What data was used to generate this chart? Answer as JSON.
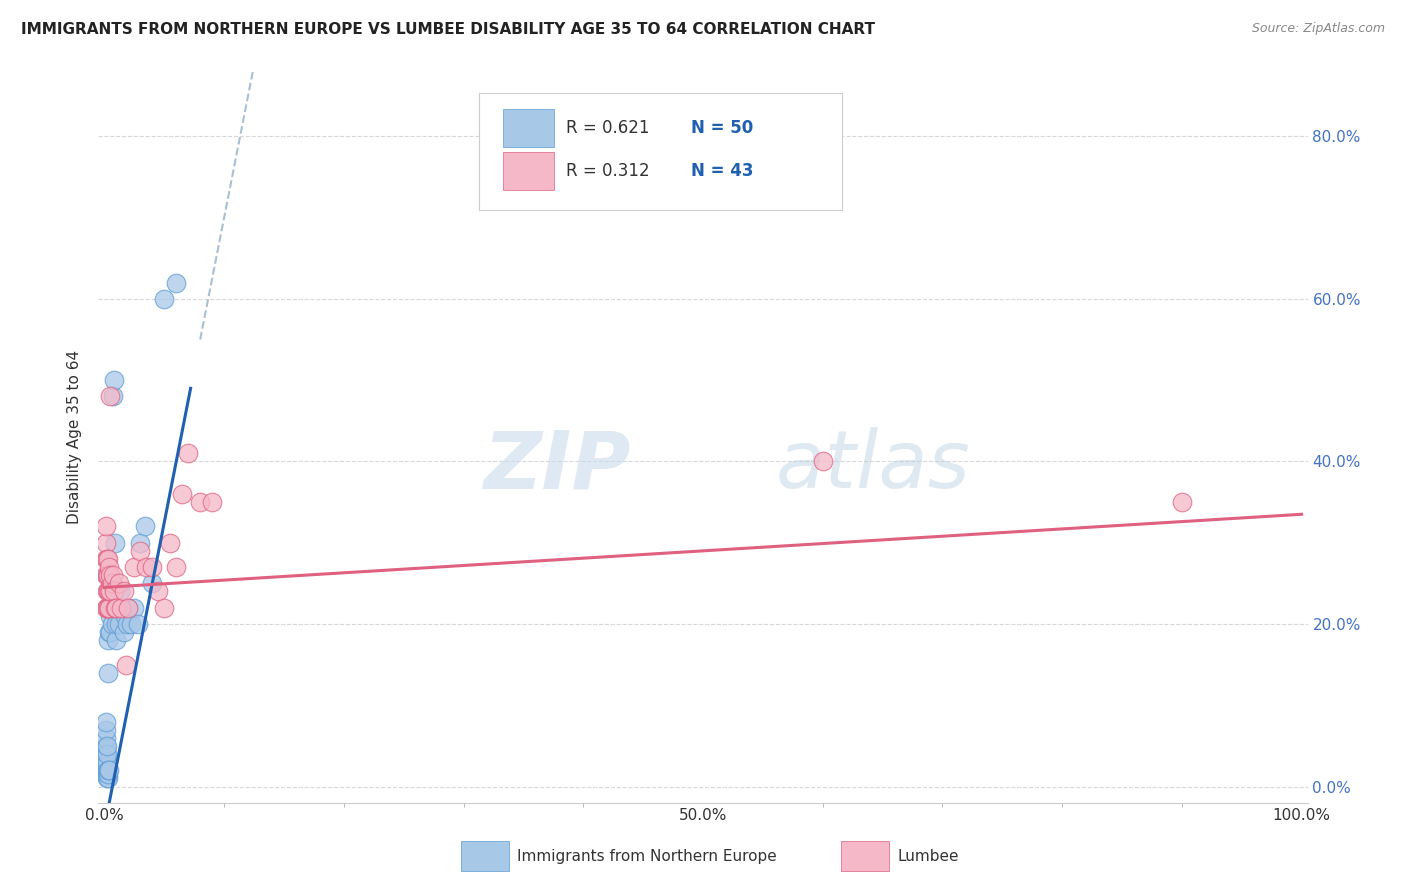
{
  "title": "IMMIGRANTS FROM NORTHERN EUROPE VS LUMBEE DISABILITY AGE 35 TO 64 CORRELATION CHART",
  "source": "Source: ZipAtlas.com",
  "ylabel": "Disability Age 35 to 64",
  "blue_R": 0.621,
  "blue_N": 50,
  "pink_R": 0.312,
  "pink_N": 43,
  "blue_color": "#a8c8e8",
  "pink_color": "#f4b8c8",
  "blue_edge": "#5b9bd5",
  "pink_edge": "#e06080",
  "trend_blue": "#2060b0",
  "trend_pink": "#e06080",
  "ref_line_color": "#a0b8d0",
  "watermark_color": "#c8d8ea",
  "blue_scatter": [
    [
      0.001,
      0.02
    ],
    [
      0.001,
      0.025
    ],
    [
      0.001,
      0.03
    ],
    [
      0.001,
      0.035
    ],
    [
      0.001,
      0.04
    ],
    [
      0.001,
      0.045
    ],
    [
      0.001,
      0.05
    ],
    [
      0.001,
      0.06
    ],
    [
      0.001,
      0.07
    ],
    [
      0.001,
      0.08
    ],
    [
      0.002,
      0.01
    ],
    [
      0.002,
      0.015
    ],
    [
      0.002,
      0.02
    ],
    [
      0.002,
      0.025
    ],
    [
      0.002,
      0.03
    ],
    [
      0.002,
      0.04
    ],
    [
      0.002,
      0.05
    ],
    [
      0.003,
      0.01
    ],
    [
      0.003,
      0.015
    ],
    [
      0.003,
      0.02
    ],
    [
      0.003,
      0.14
    ],
    [
      0.003,
      0.18
    ],
    [
      0.004,
      0.02
    ],
    [
      0.004,
      0.19
    ],
    [
      0.004,
      0.22
    ],
    [
      0.005,
      0.19
    ],
    [
      0.005,
      0.21
    ],
    [
      0.006,
      0.2
    ],
    [
      0.006,
      0.22
    ],
    [
      0.007,
      0.48
    ],
    [
      0.008,
      0.5
    ],
    [
      0.009,
      0.3
    ],
    [
      0.01,
      0.18
    ],
    [
      0.01,
      0.2
    ],
    [
      0.011,
      0.22
    ],
    [
      0.012,
      0.2
    ],
    [
      0.013,
      0.24
    ],
    [
      0.015,
      0.22
    ],
    [
      0.016,
      0.19
    ],
    [
      0.017,
      0.21
    ],
    [
      0.019,
      0.2
    ],
    [
      0.02,
      0.22
    ],
    [
      0.022,
      0.2
    ],
    [
      0.025,
      0.22
    ],
    [
      0.028,
      0.2
    ],
    [
      0.03,
      0.3
    ],
    [
      0.034,
      0.32
    ],
    [
      0.04,
      0.25
    ],
    [
      0.05,
      0.6
    ],
    [
      0.06,
      0.62
    ]
  ],
  "pink_scatter": [
    [
      0.001,
      0.22
    ],
    [
      0.001,
      0.26
    ],
    [
      0.001,
      0.28
    ],
    [
      0.001,
      0.3
    ],
    [
      0.001,
      0.32
    ],
    [
      0.002,
      0.22
    ],
    [
      0.002,
      0.24
    ],
    [
      0.002,
      0.26
    ],
    [
      0.002,
      0.28
    ],
    [
      0.003,
      0.22
    ],
    [
      0.003,
      0.24
    ],
    [
      0.003,
      0.26
    ],
    [
      0.003,
      0.28
    ],
    [
      0.004,
      0.22
    ],
    [
      0.004,
      0.24
    ],
    [
      0.004,
      0.27
    ],
    [
      0.005,
      0.24
    ],
    [
      0.005,
      0.26
    ],
    [
      0.005,
      0.48
    ],
    [
      0.006,
      0.25
    ],
    [
      0.007,
      0.26
    ],
    [
      0.008,
      0.24
    ],
    [
      0.009,
      0.22
    ],
    [
      0.01,
      0.22
    ],
    [
      0.012,
      0.25
    ],
    [
      0.014,
      0.22
    ],
    [
      0.016,
      0.24
    ],
    [
      0.018,
      0.15
    ],
    [
      0.02,
      0.22
    ],
    [
      0.025,
      0.27
    ],
    [
      0.03,
      0.29
    ],
    [
      0.035,
      0.27
    ],
    [
      0.04,
      0.27
    ],
    [
      0.045,
      0.24
    ],
    [
      0.05,
      0.22
    ],
    [
      0.055,
      0.3
    ],
    [
      0.06,
      0.27
    ],
    [
      0.065,
      0.36
    ],
    [
      0.07,
      0.41
    ],
    [
      0.08,
      0.35
    ],
    [
      0.09,
      0.35
    ],
    [
      0.6,
      0.4
    ],
    [
      0.9,
      0.35
    ]
  ],
  "xlim": [
    -0.005,
    1.005
  ],
  "ylim": [
    -0.02,
    0.88
  ],
  "xtick_positions": [
    0.0,
    0.1,
    0.2,
    0.3,
    0.4,
    0.5,
    0.6,
    0.7,
    0.8,
    0.9,
    1.0
  ],
  "xtick_labels": [
    "0.0%",
    "",
    "",
    "",
    "",
    "50.0%",
    "",
    "",
    "",
    "",
    "100.0%"
  ],
  "ytick_positions": [
    0.0,
    0.2,
    0.4,
    0.6,
    0.8
  ],
  "ytick_labels": [
    "",
    "20.0%",
    "40.0%",
    "60.0%",
    "80.0%"
  ],
  "figsize": [
    14.06,
    8.92
  ],
  "dpi": 100
}
